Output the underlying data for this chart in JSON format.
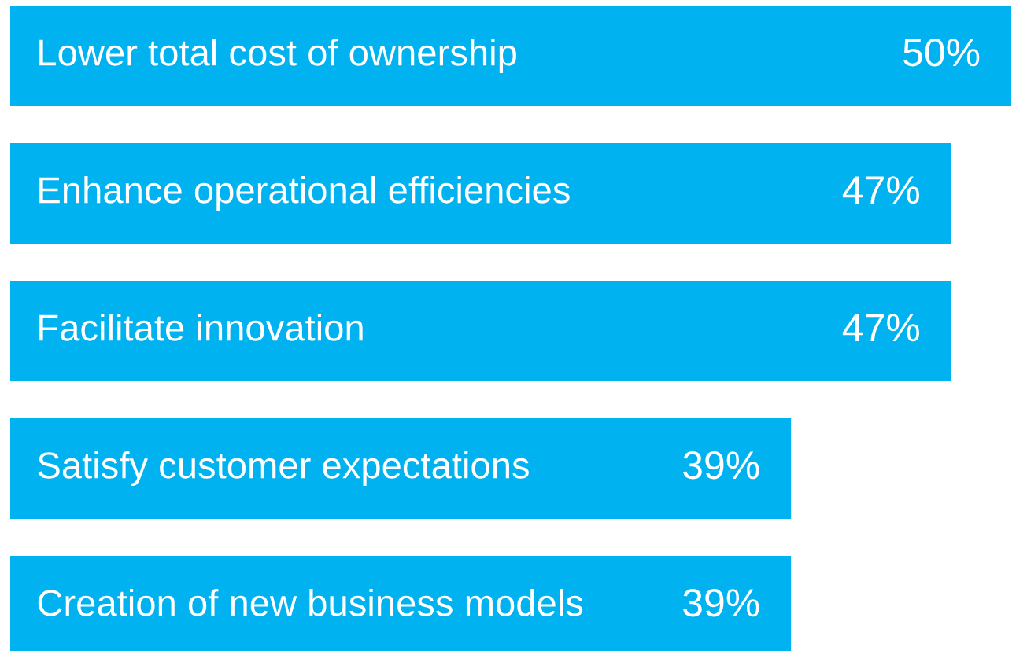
{
  "chart_data": {
    "type": "bar",
    "orientation": "horizontal",
    "categories": [
      "Lower total cost of ownership",
      "Enhance operational efficiencies",
      "Facilitate innovation",
      "Satisfy customer expectations",
      "Creation of new business models"
    ],
    "values": [
      50,
      47,
      47,
      39,
      39
    ],
    "value_labels": [
      "50%",
      "47%",
      "47%",
      "39%",
      "39%"
    ],
    "color": "#00b2ef",
    "tick_labels": false
  }
}
